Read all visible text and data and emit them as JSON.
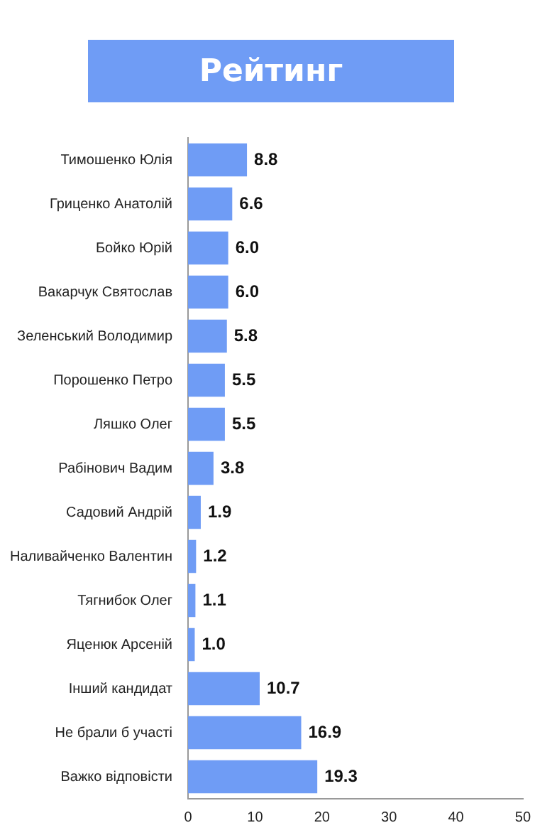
{
  "chart_data": {
    "type": "bar",
    "orientation": "horizontal",
    "title": "Рейтинг",
    "categories": [
      "Тимошенко Юлія",
      "Гриценко Анатолій",
      "Бойко Юрій",
      "Вакарчук Святослав",
      "Зеленський Володимир",
      "Порошенко Петро",
      "Ляшко Олег",
      "Рабінович Вадим",
      "Садовий Андрій",
      "Наливайченко Валентин",
      "Тягнибок Олег",
      "Яценюк Арсеній",
      "Інший кандидат",
      "Не брали б участі",
      "Важко відповісти"
    ],
    "values": [
      8.8,
      6.6,
      6.0,
      6.0,
      5.8,
      5.5,
      5.5,
      3.8,
      1.9,
      1.2,
      1.1,
      1.0,
      10.7,
      16.9,
      19.3
    ],
    "value_labels": [
      "8.8",
      "6.6",
      "6.0",
      "6.0",
      "5.8",
      "5.5",
      "5.5",
      "3.8",
      "1.9",
      "1.2",
      "1.1",
      "1.0",
      "10.7",
      "16.9",
      "19.3"
    ],
    "color": "#6f9cf5",
    "xlim": [
      0,
      50
    ],
    "xticks": [
      0,
      10,
      20,
      30,
      40,
      50
    ],
    "grid": false,
    "legend": false
  }
}
